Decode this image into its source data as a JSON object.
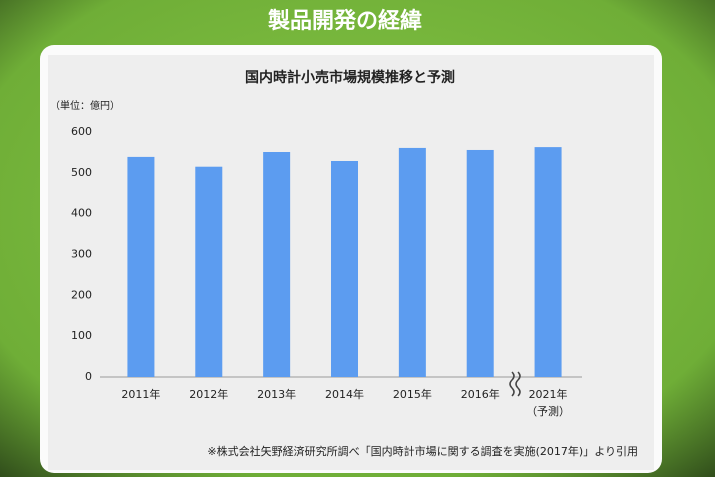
{
  "slide_title": "製品開発の経緯",
  "chart_data": {
    "type": "bar",
    "title": "国内時計小売市場規模推移と予測",
    "y_unit_label": "（単位：億円）",
    "categories": [
      "2011年",
      "2012年",
      "2013年",
      "2014年",
      "2015年",
      "2016年",
      "2021年"
    ],
    "forecast_note": "（予測）",
    "values": [
      539,
      515,
      551,
      529,
      561,
      556,
      563
    ],
    "color": "#5c9cf0",
    "ylim": [
      0,
      600
    ],
    "yticks": [
      0,
      100,
      200,
      300,
      400,
      500,
      600
    ],
    "grid": false,
    "source_note": "※株式会社矢野経済研究所調べ「国内時計市場に関する調査を実施(2017年)」より引用"
  }
}
